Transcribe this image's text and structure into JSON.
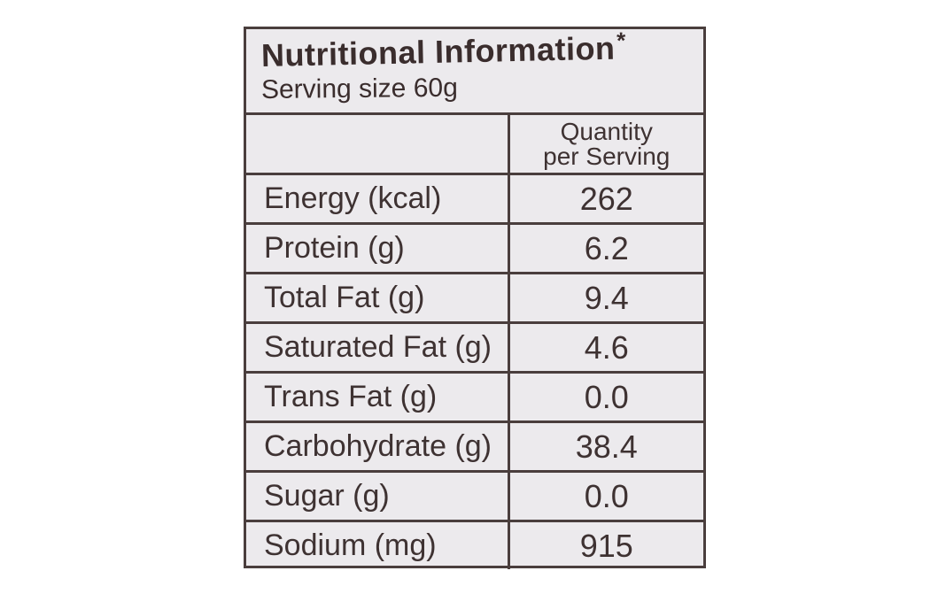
{
  "label": {
    "title": "Nutritional Information",
    "title_mark": "*",
    "serving_size": "Serving size 60g",
    "column_header_line1": "Quantity",
    "column_header_line2": "per Serving",
    "rows": [
      {
        "name": "Energy (kcal)",
        "value": "262"
      },
      {
        "name": "Protein (g)",
        "value": "6.2"
      },
      {
        "name": "Total Fat (g)",
        "value": "9.4"
      },
      {
        "name": "Saturated Fat (g)",
        "value": "4.6"
      },
      {
        "name": "Trans Fat (g)",
        "value": "0.0"
      },
      {
        "name": "Carbohydrate (g)",
        "value": "38.4"
      },
      {
        "name": "Sugar (g)",
        "value": "0.0"
      },
      {
        "name": "Sodium (mg)",
        "value": "915"
      }
    ]
  },
  "colors": {
    "background": "#eceaed",
    "ink": "#3e3232",
    "rule": "#4a3e3d"
  }
}
